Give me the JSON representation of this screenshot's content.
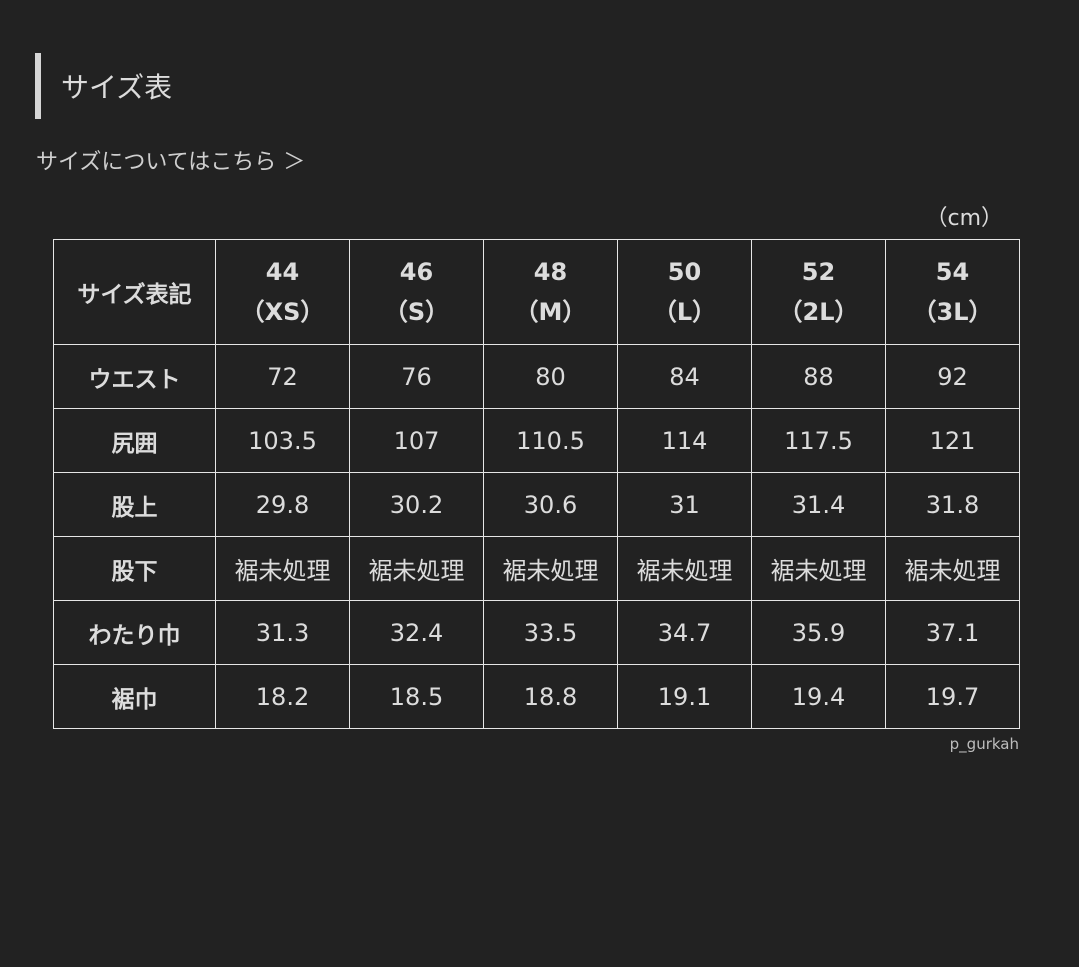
{
  "title": "サイズ表",
  "size_link": "サイズについてはこちら ＞",
  "unit": "（cm）",
  "table": {
    "corner": "サイズ表記",
    "sizes": [
      {
        "num": "44",
        "label": "（XS）"
      },
      {
        "num": "46",
        "label": "（S）"
      },
      {
        "num": "48",
        "label": "（M）"
      },
      {
        "num": "50",
        "label": "（L）"
      },
      {
        "num": "52",
        "label": "（2L）"
      },
      {
        "num": "54",
        "label": "（3L）"
      }
    ],
    "rows": [
      {
        "label": "ウエスト",
        "values": [
          "72",
          "76",
          "80",
          "84",
          "88",
          "92"
        ]
      },
      {
        "label": "尻囲",
        "values": [
          "103.5",
          "107",
          "110.5",
          "114",
          "117.5",
          "121"
        ]
      },
      {
        "label": "股上",
        "values": [
          "29.8",
          "30.2",
          "30.6",
          "31",
          "31.4",
          "31.8"
        ]
      },
      {
        "label": "股下",
        "values": [
          "裾未処理",
          "裾未処理",
          "裾未処理",
          "裾未処理",
          "裾未処理",
          "裾未処理"
        ]
      },
      {
        "label": "わたり巾",
        "values": [
          "31.3",
          "32.4",
          "33.5",
          "34.7",
          "35.9",
          "37.1"
        ]
      },
      {
        "label": "裾巾",
        "values": [
          "18.2",
          "18.5",
          "18.8",
          "19.1",
          "19.4",
          "19.7"
        ]
      }
    ]
  },
  "credit": "p_gurkah"
}
